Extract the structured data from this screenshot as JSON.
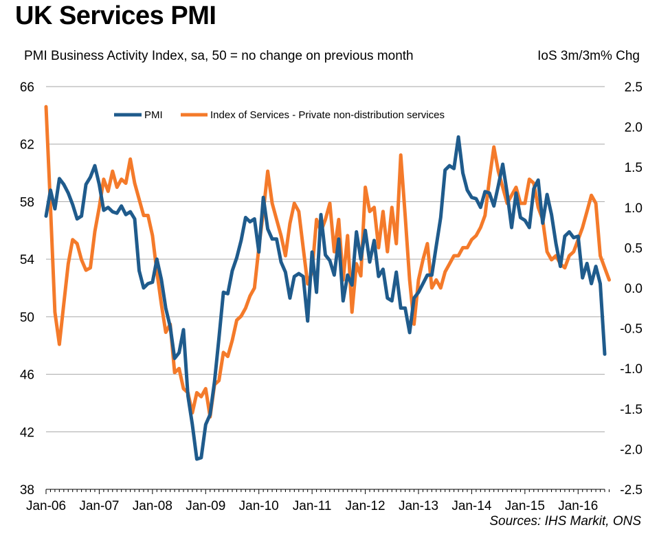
{
  "chart_data": {
    "type": "line",
    "title": "UK Services PMI",
    "subtitle": "PMI Business Activity Index, sa, 50 = no change on previous month",
    "y2_title": "IoS 3m/3m% Chg",
    "source": "Sources: IHS Markit, ONS",
    "x_tick_labels": [
      "Jan-06",
      "Jan-07",
      "Jan-08",
      "Jan-09",
      "Jan-10",
      "Jan-11",
      "Jan-12",
      "Jan-13",
      "Jan-14",
      "Jan-15",
      "Jan-16"
    ],
    "ylim": [
      38,
      66
    ],
    "y_ticks": [
      "38",
      "42",
      "46",
      "50",
      "54",
      "58",
      "62",
      "66"
    ],
    "y2lim": [
      -2.5,
      2.5
    ],
    "y2_ticks": [
      "-2.5",
      "-2.0",
      "-1.5",
      "-1.0",
      "-0.5",
      "0.0",
      "0.5",
      "1.0",
      "1.5",
      "2.0",
      "2.5"
    ],
    "x_start": "2006-01",
    "colors": {
      "pmi": "#1F5B8C",
      "ios": "#F47A2A",
      "grid": "#A6A6A6"
    },
    "series": [
      {
        "name": "PMI",
        "axis": "left",
        "values": [
          57.0,
          58.8,
          57.5,
          59.6,
          59.2,
          58.6,
          57.8,
          56.8,
          57.0,
          59.2,
          59.7,
          60.5,
          59.2,
          57.4,
          57.6,
          57.3,
          57.2,
          57.7,
          57.1,
          57.3,
          56.8,
          53.2,
          52.0,
          52.3,
          52.4,
          54.0,
          52.6,
          50.6,
          49.3,
          47.1,
          47.5,
          49.1,
          44.5,
          42.5,
          40.1,
          40.2,
          42.5,
          43.2,
          45.5,
          48.5,
          51.7,
          51.6,
          53.2,
          54.1,
          55.3,
          56.9,
          56.6,
          56.8,
          54.5,
          58.3,
          56.1,
          55.4,
          55.4,
          53.8,
          53.1,
          51.3,
          52.8,
          53.0,
          52.8,
          49.7,
          54.5,
          51.7,
          57.1,
          54.3,
          53.9,
          52.9,
          55.4,
          51.1,
          52.9,
          52.2,
          55.9,
          54.0,
          56.0,
          53.8,
          55.3,
          52.8,
          53.3,
          51.3,
          51.1,
          53.1,
          50.6,
          50.6,
          48.9,
          51.3,
          51.7,
          52.3,
          52.9,
          52.9,
          54.9,
          56.9,
          60.2,
          60.5,
          60.3,
          62.5,
          60.0,
          58.8,
          58.3,
          58.2,
          57.6,
          58.7,
          58.6,
          57.7,
          59.1,
          60.6,
          58.6,
          56.2,
          58.6,
          56.9,
          56.7,
          56.2,
          58.9,
          59.5,
          56.5,
          58.5,
          57.1,
          55.1,
          53.5,
          55.6,
          55.9,
          55.5,
          55.6,
          52.7,
          53.7,
          52.3,
          53.5,
          52.3,
          47.4
        ]
      },
      {
        "name": "Index of Services - Private non-distribution services",
        "axis": "right",
        "values": [
          2.25,
          1.0,
          -0.3,
          -0.7,
          -0.2,
          0.3,
          0.6,
          0.55,
          0.35,
          0.22,
          0.25,
          0.7,
          1.0,
          1.35,
          1.2,
          1.45,
          1.25,
          1.35,
          1.3,
          1.6,
          1.3,
          1.1,
          0.9,
          0.9,
          0.65,
          0.2,
          -0.2,
          -0.55,
          -0.45,
          -1.05,
          -1.0,
          -1.25,
          -1.3,
          -1.55,
          -1.3,
          -1.35,
          -1.25,
          -1.6,
          -1.2,
          -1.15,
          -0.8,
          -0.85,
          -0.65,
          -0.4,
          -0.35,
          -0.25,
          -0.1,
          0.0,
          0.5,
          0.95,
          1.45,
          1.05,
          0.85,
          0.65,
          0.4,
          0.8,
          1.05,
          0.95,
          0.5,
          0.05,
          0.2,
          0.85,
          0.7,
          0.85,
          1.05,
          0.45,
          0.85,
          0.1,
          0.65,
          -0.3,
          0.3,
          0.15,
          1.25,
          0.95,
          1.0,
          0.5,
          0.95,
          0.45,
          1.0,
          0.55,
          1.65,
          0.9,
          0.1,
          -0.45,
          0.1,
          0.35,
          0.55,
          0.0,
          0.1,
          0.0,
          0.2,
          0.3,
          0.4,
          0.4,
          0.5,
          0.5,
          0.6,
          0.65,
          0.75,
          0.9,
          1.35,
          1.75,
          1.45,
          1.25,
          1.05,
          1.15,
          1.25,
          1.05,
          1.05,
          1.35,
          1.3,
          1.0,
          0.85,
          0.45,
          0.35,
          0.4,
          0.3,
          0.25,
          0.4,
          0.45,
          0.6,
          0.75,
          0.95,
          1.15,
          1.05,
          0.4,
          0.25,
          0.1
        ]
      }
    ]
  }
}
